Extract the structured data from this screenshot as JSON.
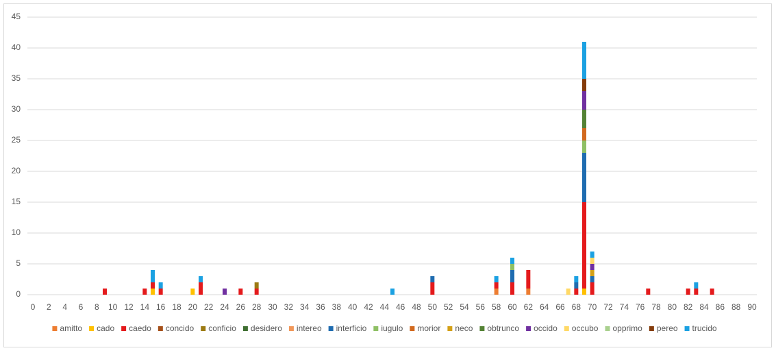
{
  "chart_data": {
    "type": "stacked_bar",
    "x": [
      9,
      14,
      15,
      16,
      20,
      21,
      24,
      26,
      28,
      45,
      50,
      58,
      60,
      62,
      67,
      68,
      69,
      70,
      77,
      82,
      83,
      85
    ],
    "xlim": [
      0,
      90
    ],
    "xticks": [
      0,
      2,
      4,
      6,
      8,
      10,
      12,
      14,
      16,
      18,
      20,
      22,
      24,
      26,
      28,
      30,
      32,
      34,
      36,
      38,
      40,
      42,
      44,
      46,
      48,
      50,
      52,
      54,
      56,
      58,
      60,
      62,
      64,
      66,
      68,
      70,
      72,
      74,
      76,
      78,
      80,
      82,
      84,
      86,
      88,
      90
    ],
    "ylim": [
      0,
      45
    ],
    "yticks": [
      0,
      5,
      10,
      15,
      20,
      25,
      30,
      35,
      40,
      45
    ],
    "grid": true,
    "legend": "bottom",
    "series": [
      {
        "name": "amitto",
        "color": "#ED7D31",
        "values": [
          null,
          null,
          null,
          null,
          null,
          null,
          null,
          null,
          null,
          null,
          null,
          1,
          null,
          1,
          null,
          null,
          null,
          null,
          null,
          null,
          null,
          null
        ]
      },
      {
        "name": "cado",
        "color": "#FFC000",
        "values": [
          null,
          null,
          1,
          null,
          1,
          null,
          null,
          null,
          null,
          null,
          null,
          null,
          null,
          null,
          null,
          null,
          1,
          null,
          null,
          null,
          null,
          null
        ]
      },
      {
        "name": "caedo",
        "color": "#E41A1C",
        "values": [
          1,
          1,
          1,
          1,
          null,
          2,
          null,
          1,
          1,
          null,
          2,
          1,
          2,
          3,
          null,
          1,
          14,
          2,
          1,
          1,
          1,
          1
        ]
      },
      {
        "name": "concido",
        "color": "#A5501A",
        "values": [
          null,
          null,
          null,
          null,
          null,
          null,
          null,
          null,
          null,
          null,
          null,
          null,
          null,
          null,
          null,
          null,
          null,
          null,
          null,
          null,
          null,
          null
        ]
      },
      {
        "name": "conficio",
        "color": "#9C7A12",
        "values": [
          null,
          null,
          null,
          null,
          null,
          null,
          null,
          null,
          1,
          null,
          null,
          null,
          null,
          null,
          null,
          null,
          null,
          null,
          null,
          null,
          null,
          null
        ]
      },
      {
        "name": "desidero",
        "color": "#3F6F32",
        "values": [
          null,
          null,
          null,
          null,
          null,
          null,
          null,
          null,
          null,
          null,
          null,
          null,
          null,
          null,
          null,
          null,
          null,
          null,
          null,
          null,
          null,
          null
        ]
      },
      {
        "name": "intereo",
        "color": "#F1975A",
        "values": [
          null,
          null,
          null,
          null,
          null,
          null,
          null,
          null,
          null,
          null,
          null,
          null,
          null,
          null,
          null,
          null,
          null,
          null,
          null,
          null,
          null,
          null
        ]
      },
      {
        "name": "interficio",
        "color": "#1F6CB0",
        "values": [
          null,
          null,
          null,
          null,
          null,
          null,
          null,
          null,
          null,
          null,
          1,
          null,
          2,
          null,
          null,
          1,
          8,
          1,
          null,
          null,
          null,
          null
        ]
      },
      {
        "name": "iugulo",
        "color": "#8FC065",
        "values": [
          null,
          null,
          null,
          null,
          null,
          null,
          null,
          null,
          null,
          null,
          null,
          null,
          1,
          null,
          null,
          null,
          2,
          null,
          null,
          null,
          null,
          null
        ]
      },
      {
        "name": "morior",
        "color": "#D2691E",
        "values": [
          null,
          null,
          null,
          null,
          null,
          null,
          null,
          null,
          null,
          null,
          null,
          null,
          null,
          null,
          null,
          null,
          2,
          null,
          null,
          null,
          null,
          null
        ]
      },
      {
        "name": "neco",
        "color": "#D4A017",
        "values": [
          null,
          null,
          null,
          null,
          null,
          null,
          null,
          null,
          null,
          null,
          null,
          null,
          null,
          null,
          null,
          null,
          null,
          1,
          null,
          null,
          null,
          null
        ]
      },
      {
        "name": "obtrunco",
        "color": "#548235",
        "values": [
          null,
          null,
          null,
          null,
          null,
          null,
          null,
          null,
          null,
          null,
          null,
          null,
          null,
          null,
          null,
          null,
          3,
          null,
          null,
          null,
          null,
          null
        ]
      },
      {
        "name": "occido",
        "color": "#7030A0",
        "values": [
          null,
          null,
          null,
          null,
          null,
          null,
          1,
          null,
          null,
          null,
          null,
          null,
          null,
          null,
          null,
          null,
          3,
          1,
          null,
          null,
          null,
          null
        ]
      },
      {
        "name": "occubo",
        "color": "#FFD966",
        "values": [
          null,
          null,
          null,
          null,
          null,
          null,
          null,
          null,
          null,
          null,
          null,
          null,
          null,
          null,
          1,
          null,
          null,
          1,
          null,
          null,
          null,
          null
        ]
      },
      {
        "name": "opprimo",
        "color": "#A9D08E",
        "values": [
          null,
          null,
          null,
          null,
          null,
          null,
          null,
          null,
          null,
          null,
          null,
          null,
          null,
          null,
          null,
          null,
          null,
          null,
          null,
          null,
          null,
          null
        ]
      },
      {
        "name": "pereo",
        "color": "#843C0C",
        "values": [
          null,
          null,
          null,
          null,
          null,
          null,
          null,
          null,
          null,
          null,
          null,
          null,
          null,
          null,
          null,
          null,
          2,
          null,
          null,
          null,
          null,
          null
        ]
      },
      {
        "name": "trucido",
        "color": "#1BA1E2",
        "values": [
          null,
          null,
          2,
          1,
          null,
          1,
          null,
          null,
          null,
          1,
          null,
          1,
          1,
          null,
          null,
          1,
          6,
          1,
          null,
          null,
          1,
          null
        ]
      }
    ]
  }
}
